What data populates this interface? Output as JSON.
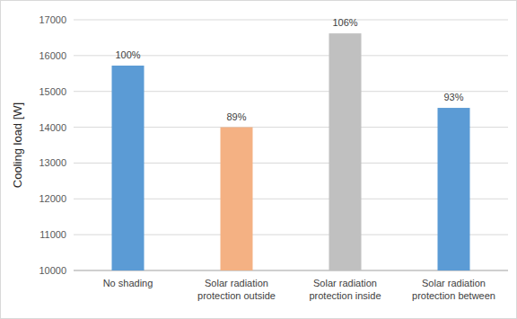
{
  "chart_data": {
    "type": "bar",
    "y_label": "Cooling load [W]",
    "categories": [
      "No shading",
      "Solar radiation protection outside",
      "Solar radiation protection inside",
      "Solar radiation protection between"
    ],
    "values": [
      15720,
      14000,
      16620,
      14540
    ],
    "colors": [
      "#5b9bd5",
      "#f4b183",
      "#c0c0c0",
      "#5b9bd5"
    ],
    "annotations": [
      "100%",
      "89%",
      "106%",
      "93%"
    ],
    "ylim": [
      10000,
      17000
    ],
    "yticks": [
      10000,
      11000,
      12000,
      13000,
      14000,
      15000,
      16000,
      17000
    ],
    "grid": true
  }
}
